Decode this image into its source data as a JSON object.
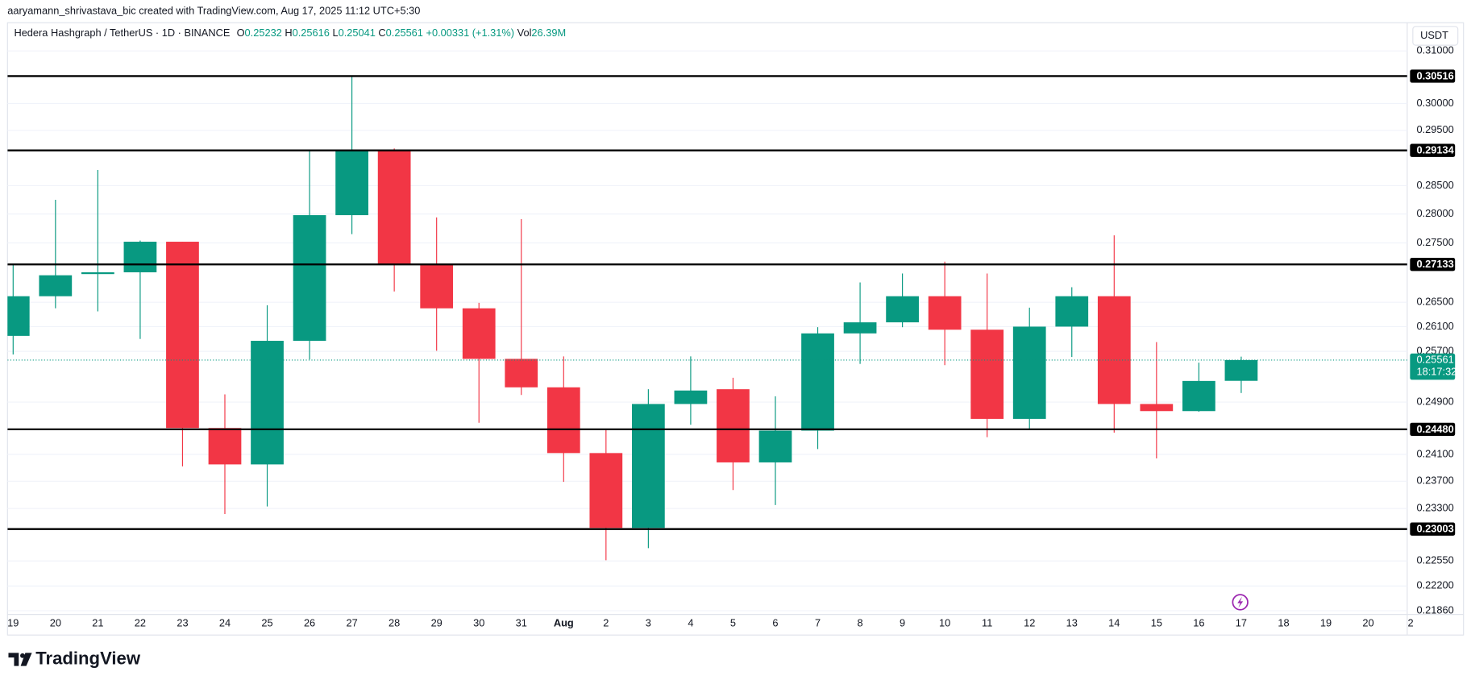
{
  "caption": "aaryamann_shrivastava_bic created with TradingView.com, Aug 17, 2025 11:12 UTC+5:30",
  "brand": "TradingView",
  "chart_data": {
    "type": "candlestick",
    "title": "Hedera Hashgraph / TetherUS · 1D · BINANCE",
    "header_fields": [
      {
        "label": "O",
        "value": "0.25232"
      },
      {
        "label": "H",
        "value": "0.25616"
      },
      {
        "label": "L",
        "value": "0.25041"
      },
      {
        "label": "C",
        "value": "0.25561"
      }
    ],
    "change": "+0.00331 (+1.31%)",
    "volume": {
      "label": "Vol",
      "value": "26.39M"
    },
    "currency": "USDT",
    "categories": [
      "19",
      "20",
      "21",
      "22",
      "23",
      "24",
      "25",
      "26",
      "27",
      "28",
      "29",
      "30",
      "31",
      "Aug",
      "2",
      "3",
      "4",
      "5",
      "6",
      "7",
      "8",
      "9",
      "10",
      "11",
      "12",
      "13",
      "14",
      "15",
      "16",
      "17",
      "18",
      "19",
      "20",
      "2"
    ],
    "open": [
      0.2595,
      0.266,
      0.2697,
      0.27,
      0.2752,
      0.245,
      0.2395,
      0.2587,
      0.2798,
      0.2913,
      0.2713,
      0.264,
      0.2558,
      0.2513,
      0.2412,
      0.2302,
      0.2487,
      0.251,
      0.2398,
      0.2446,
      0.2599,
      0.2617,
      0.266,
      0.2605,
      0.2464,
      0.261,
      0.266,
      0.2487,
      0.2476,
      0.25232,
      null,
      null,
      null,
      null
    ],
    "high": [
      0.2715,
      0.2825,
      0.2878,
      0.2754,
      0.2752,
      0.2502,
      0.2645,
      0.2913,
      0.3052,
      0.2917,
      0.2794,
      0.2649,
      0.2791,
      0.2562,
      0.2447,
      0.251,
      0.2562,
      0.2528,
      0.2499,
      0.2609,
      0.2683,
      0.2698,
      0.2718,
      0.2698,
      0.2641,
      0.2675,
      0.2763,
      0.2585,
      0.2552,
      0.25616,
      null,
      null,
      null,
      null
    ],
    "low": [
      0.2565,
      0.264,
      0.2635,
      0.259,
      0.2392,
      0.2322,
      0.2333,
      0.2557,
      0.2765,
      0.2668,
      0.2571,
      0.2458,
      0.2501,
      0.2369,
      0.2256,
      0.2273,
      0.2455,
      0.2357,
      0.2335,
      0.2418,
      0.255,
      0.2609,
      0.2548,
      0.2436,
      0.2448,
      0.2561,
      0.2443,
      0.2404,
      0.2475,
      0.25041,
      null,
      null,
      null,
      null
    ],
    "close": [
      0.266,
      0.2695,
      0.27,
      0.2752,
      0.245,
      0.2395,
      0.2587,
      0.2798,
      0.2913,
      0.2714,
      0.264,
      0.2558,
      0.2513,
      0.2412,
      0.2302,
      0.2487,
      0.2508,
      0.2398,
      0.2446,
      0.2599,
      0.2617,
      0.266,
      0.2605,
      0.2464,
      0.261,
      0.266,
      0.2487,
      0.2476,
      0.2523,
      0.25561,
      null,
      null,
      null,
      null
    ],
    "up_color": "#089981",
    "down_color": "#f23645",
    "log_scale": true,
    "grid": true,
    "ylim": [
      0.2181,
      0.3155
    ],
    "yticks": [
      {
        "value": 0.31,
        "label": "0.31000"
      },
      {
        "value": 0.3,
        "label": "0.30000"
      },
      {
        "value": 0.295,
        "label": "0.29500"
      },
      {
        "value": 0.285,
        "label": "0.28500"
      },
      {
        "value": 0.28,
        "label": "0.28000"
      },
      {
        "value": 0.275,
        "label": "0.27500"
      },
      {
        "value": 0.265,
        "label": "0.26500"
      },
      {
        "value": 0.261,
        "label": "0.26100"
      },
      {
        "value": 0.257,
        "label": "0.25700"
      },
      {
        "value": 0.249,
        "label": "0.24900"
      },
      {
        "value": 0.241,
        "label": "0.24100"
      },
      {
        "value": 0.237,
        "label": "0.23700"
      },
      {
        "value": 0.233,
        "label": "0.23300"
      },
      {
        "value": 0.2255,
        "label": "0.22550"
      },
      {
        "value": 0.222,
        "label": "0.22200"
      },
      {
        "value": 0.2186,
        "label": "0.21860"
      }
    ],
    "levels": [
      0.30516,
      0.29134,
      0.27133,
      {
        "value": 0.2448,
        "label": "0.24480"
      },
      0.23003
    ],
    "level_color": "#000000",
    "last_price": {
      "value": 0.25561,
      "countdown": "18:17:32"
    }
  }
}
